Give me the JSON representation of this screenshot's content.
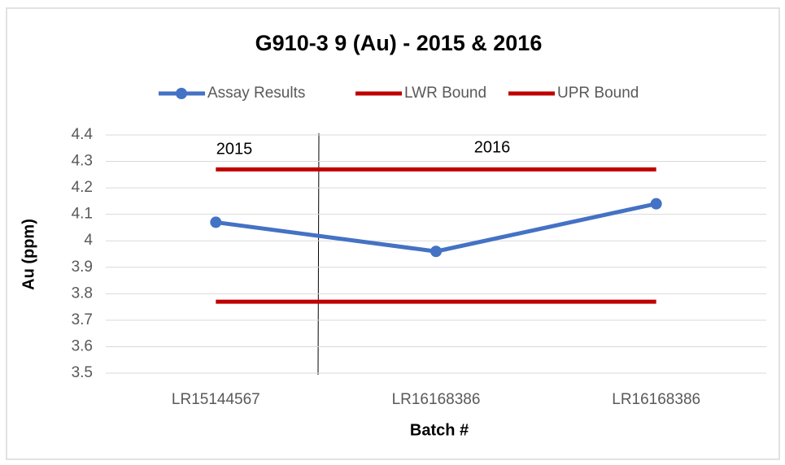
{
  "chart_data": {
    "type": "line",
    "title": "G910-3 9 (Au) - 2015 & 2016",
    "x_label": "Batch #",
    "y_label": "Au (ppm)",
    "annotations": [
      "2015",
      "2016"
    ],
    "categories": [
      "LR15144567",
      "LR16168386",
      "LR16168386"
    ],
    "series": [
      {
        "name": "Assay Results",
        "color": "#4472c4",
        "marker": true,
        "values": [
          4.07,
          3.96,
          4.14
        ]
      },
      {
        "name": "LWR Bound",
        "color": "#c00000",
        "marker": false,
        "values": [
          3.77,
          3.77,
          3.77
        ]
      },
      {
        "name": "UPR Bound",
        "color": "#c00000",
        "marker": false,
        "values": [
          4.27,
          4.27,
          4.27
        ]
      }
    ],
    "ylim": [
      3.5,
      4.4
    ],
    "yticks": [
      3.5,
      3.6,
      3.7,
      3.8,
      3.9,
      4,
      4.1,
      4.2,
      4.3,
      4.4
    ],
    "grid": true,
    "legend": "top"
  }
}
